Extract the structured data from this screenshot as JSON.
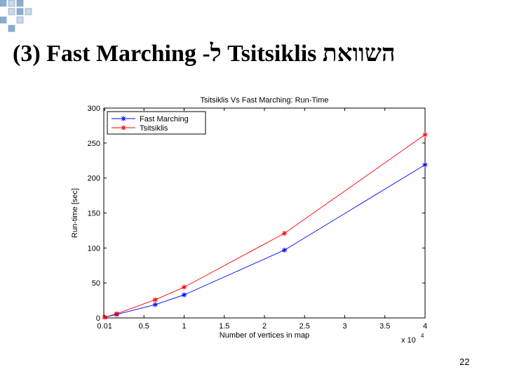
{
  "slide": {
    "title": "(3) Fast Marching -ל Tsitsiklis השוואת",
    "page_number": "22",
    "deco_colors": [
      "#8aaed0",
      "#c9d9ea"
    ]
  },
  "chart_data": {
    "type": "line",
    "title": "Tsitsiklis Vs Fast Marching: Run-Time",
    "xlabel": "Number of vertices in map",
    "ylabel": "Run-time [sec]",
    "x_multiplier_label": "x 10",
    "x_multiplier_exp": "4",
    "xlim": [
      0,
      4
    ],
    "ylim": [
      0,
      300
    ],
    "x_ticks": [
      0.01,
      0.5,
      1,
      1.5,
      2,
      2.5,
      3,
      3.5,
      4
    ],
    "x_tick_labels": [
      "0.01",
      "0.5",
      "1",
      "1.5",
      "2",
      "2.5",
      "3",
      "3.5",
      "4"
    ],
    "y_ticks": [
      0,
      50,
      100,
      150,
      200,
      250,
      300
    ],
    "y_tick_labels": [
      "0",
      "50",
      "100",
      "150",
      "200",
      "250",
      "300"
    ],
    "grid": false,
    "legend_position": "top-left",
    "series": [
      {
        "name": "Fast Marching",
        "color": "#0000ff",
        "x": [
          0.01,
          0.16,
          0.64,
          1.0,
          2.25,
          4.0
        ],
        "y": [
          1,
          5,
          19,
          33,
          97,
          219
        ]
      },
      {
        "name": "Tsitsiklis",
        "color": "#ff0000",
        "x": [
          0.01,
          0.16,
          0.64,
          1.0,
          2.25,
          4.0
        ],
        "y": [
          1,
          6,
          26,
          44,
          121,
          262
        ]
      }
    ]
  }
}
